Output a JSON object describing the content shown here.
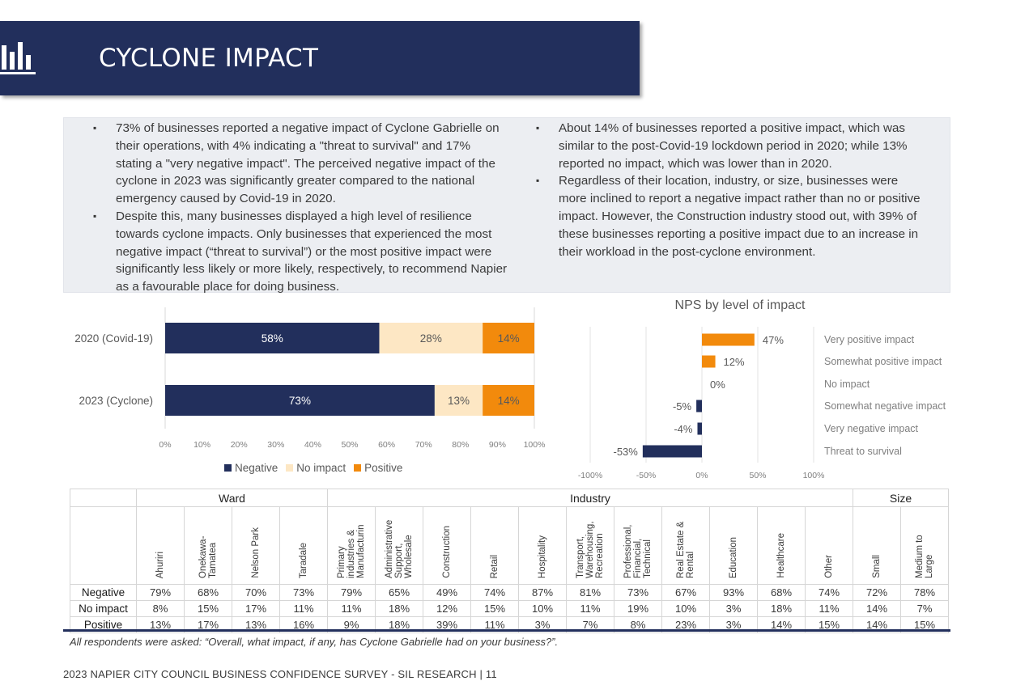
{
  "header": {
    "title": "CYCLONE IMPACT",
    "icon": "bar-chart-icon",
    "color": "#222f5c"
  },
  "summary": {
    "left": [
      "73% of businesses reported a negative impact of Cyclone Gabrielle on their operations, with 4% indicating a \"threat to survival\" and 17% stating a \"very negative impact\". The perceived negative impact of the cyclone in 2023 was significantly greater compared to the national emergency caused by Covid-19 in 2020.",
      "Despite this, many businesses displayed a high level of resilience towards cyclone impacts. Only businesses that experienced the most negative impact (“threat to survival”) or the most positive impact were significantly less likely or more likely, respectively, to recommend Napier as a favourable place for doing business."
    ],
    "right": [
      "About 14% of businesses reported a positive impact, which was similar to the post-Covid-19 lockdown period in 2020; while 13% reported no impact, which was lower than in 2020.",
      "Regardless of their location, industry, or size, businesses were more inclined to report a negative impact rather than no or positive impact. However, the Construction industry stood out, with 39% of these businesses reporting a positive impact due to an increase in their workload in the post-cyclone environment."
    ]
  },
  "chart_data": [
    {
      "type": "bar",
      "orientation": "horizontal",
      "stacked": true,
      "categories": [
        "2020 (Covid-19)",
        "2023 (Cyclone)"
      ],
      "series": [
        {
          "name": "Negative",
          "values": [
            58,
            73
          ],
          "labels": [
            "58%",
            "73%"
          ],
          "color": "#222f5c"
        },
        {
          "name": "No impact",
          "values": [
            28,
            13
          ],
          "labels": [
            "28%",
            "13%"
          ],
          "color": "#fde7c4"
        },
        {
          "name": "Positive",
          "values": [
            14,
            14
          ],
          "labels": [
            "14%",
            "14%"
          ],
          "color": "#f28a0c"
        }
      ],
      "xlim": [
        0,
        100
      ],
      "xticks": [
        "0%",
        "10%",
        "20%",
        "30%",
        "40%",
        "50%",
        "60%",
        "70%",
        "80%",
        "90%",
        "100%"
      ],
      "legend": "bottom"
    },
    {
      "type": "bar",
      "orientation": "horizontal",
      "title": "NPS by level of impact",
      "categories": [
        "Very positive impact",
        "Somewhat positive impact",
        "No impact",
        "Somewhat negative impact",
        "Very negative impact",
        "Threat to survival"
      ],
      "values": [
        47,
        12,
        0,
        -5,
        -4,
        -53
      ],
      "labels": [
        "47%",
        "12%",
        "0%",
        "-5%",
        "-4%",
        "-53%"
      ],
      "xlim": [
        -100,
        100
      ],
      "xticks": [
        "-100%",
        "-50%",
        "0%",
        "50%",
        "100%"
      ],
      "positive_color": "#f28a0c",
      "negative_color": "#222f5c"
    }
  ],
  "table": {
    "groups": [
      {
        "label": "Ward",
        "span": 4
      },
      {
        "label": "Industry",
        "span": 11
      },
      {
        "label": "Size",
        "span": 2
      }
    ],
    "columns": [
      "Ahuriri",
      "Onekawa-Tamatea",
      "Nelson Park",
      "Taradale",
      "Primary industries & Manufacturin",
      "Administrative Support, Wholesale",
      "Construction",
      "Retail",
      "Hospitality",
      "Transport, Warehousing, Recreation",
      "Professional, Financial, Technical",
      "Real Estate & Rental",
      "Education",
      "Healthcare",
      "Other",
      "Small",
      "Medium to Large"
    ],
    "rows": [
      {
        "label": "Negative",
        "values": [
          "79%",
          "68%",
          "70%",
          "73%",
          "79%",
          "65%",
          "49%",
          "74%",
          "87%",
          "81%",
          "73%",
          "67%",
          "93%",
          "68%",
          "74%",
          "72%",
          "78%"
        ]
      },
      {
        "label": "No impact",
        "values": [
          "8%",
          "15%",
          "17%",
          "11%",
          "11%",
          "18%",
          "12%",
          "15%",
          "10%",
          "11%",
          "19%",
          "10%",
          "3%",
          "18%",
          "11%",
          "14%",
          "7%"
        ]
      },
      {
        "label": "Positive",
        "values": [
          "13%",
          "17%",
          "13%",
          "16%",
          "9%",
          "18%",
          "39%",
          "11%",
          "3%",
          "7%",
          "8%",
          "23%",
          "3%",
          "14%",
          "15%",
          "14%",
          "15%"
        ]
      }
    ]
  },
  "footnote": "All respondents were asked: “Overall, what impact, if any, has Cyclone Gabrielle had on your business?”.",
  "footer": "2023 NAPIER CITY COUNCIL BUSINESS CONFIDENCE SURVEY - SIL RESEARCH | 11"
}
